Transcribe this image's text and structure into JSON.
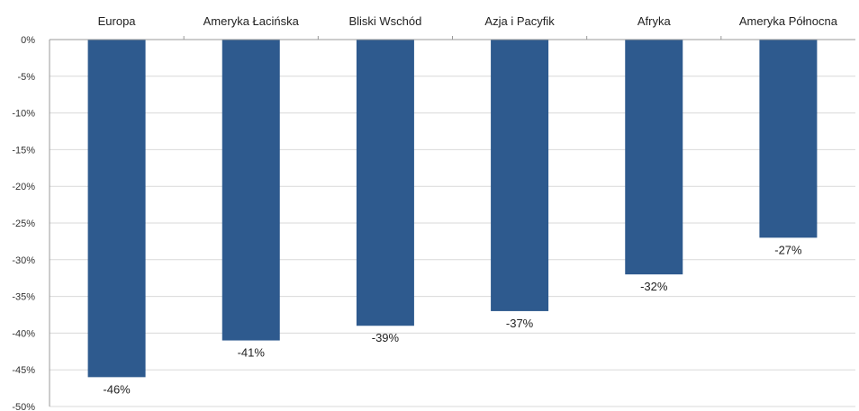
{
  "chart_data": {
    "type": "bar",
    "categories": [
      "Europa",
      "Ameryka Łacińska",
      "Bliski Wschód",
      "Azja i Pacyfik",
      "Afryka",
      "Ameryka Północna"
    ],
    "values": [
      -46,
      -41,
      -39,
      -37,
      -32,
      -27
    ],
    "data_labels": [
      "-46%",
      "-41%",
      "-39%",
      "-37%",
      "-32%",
      "-27%"
    ],
    "y_ticks": [
      0,
      -5,
      -10,
      -15,
      -20,
      -25,
      -30,
      -35,
      -40,
      -45,
      -50
    ],
    "y_tick_labels": [
      "0%",
      "-5%",
      "-10%",
      "-15%",
      "-20%",
      "-25%",
      "-30%",
      "-35%",
      "-40%",
      "-45%",
      "-50%"
    ],
    "ylim": [
      -50,
      0
    ],
    "category_axis_position": "top",
    "grid": true,
    "title": "",
    "xlabel": "",
    "ylabel": "",
    "bar_color": "#2e5a8e"
  }
}
